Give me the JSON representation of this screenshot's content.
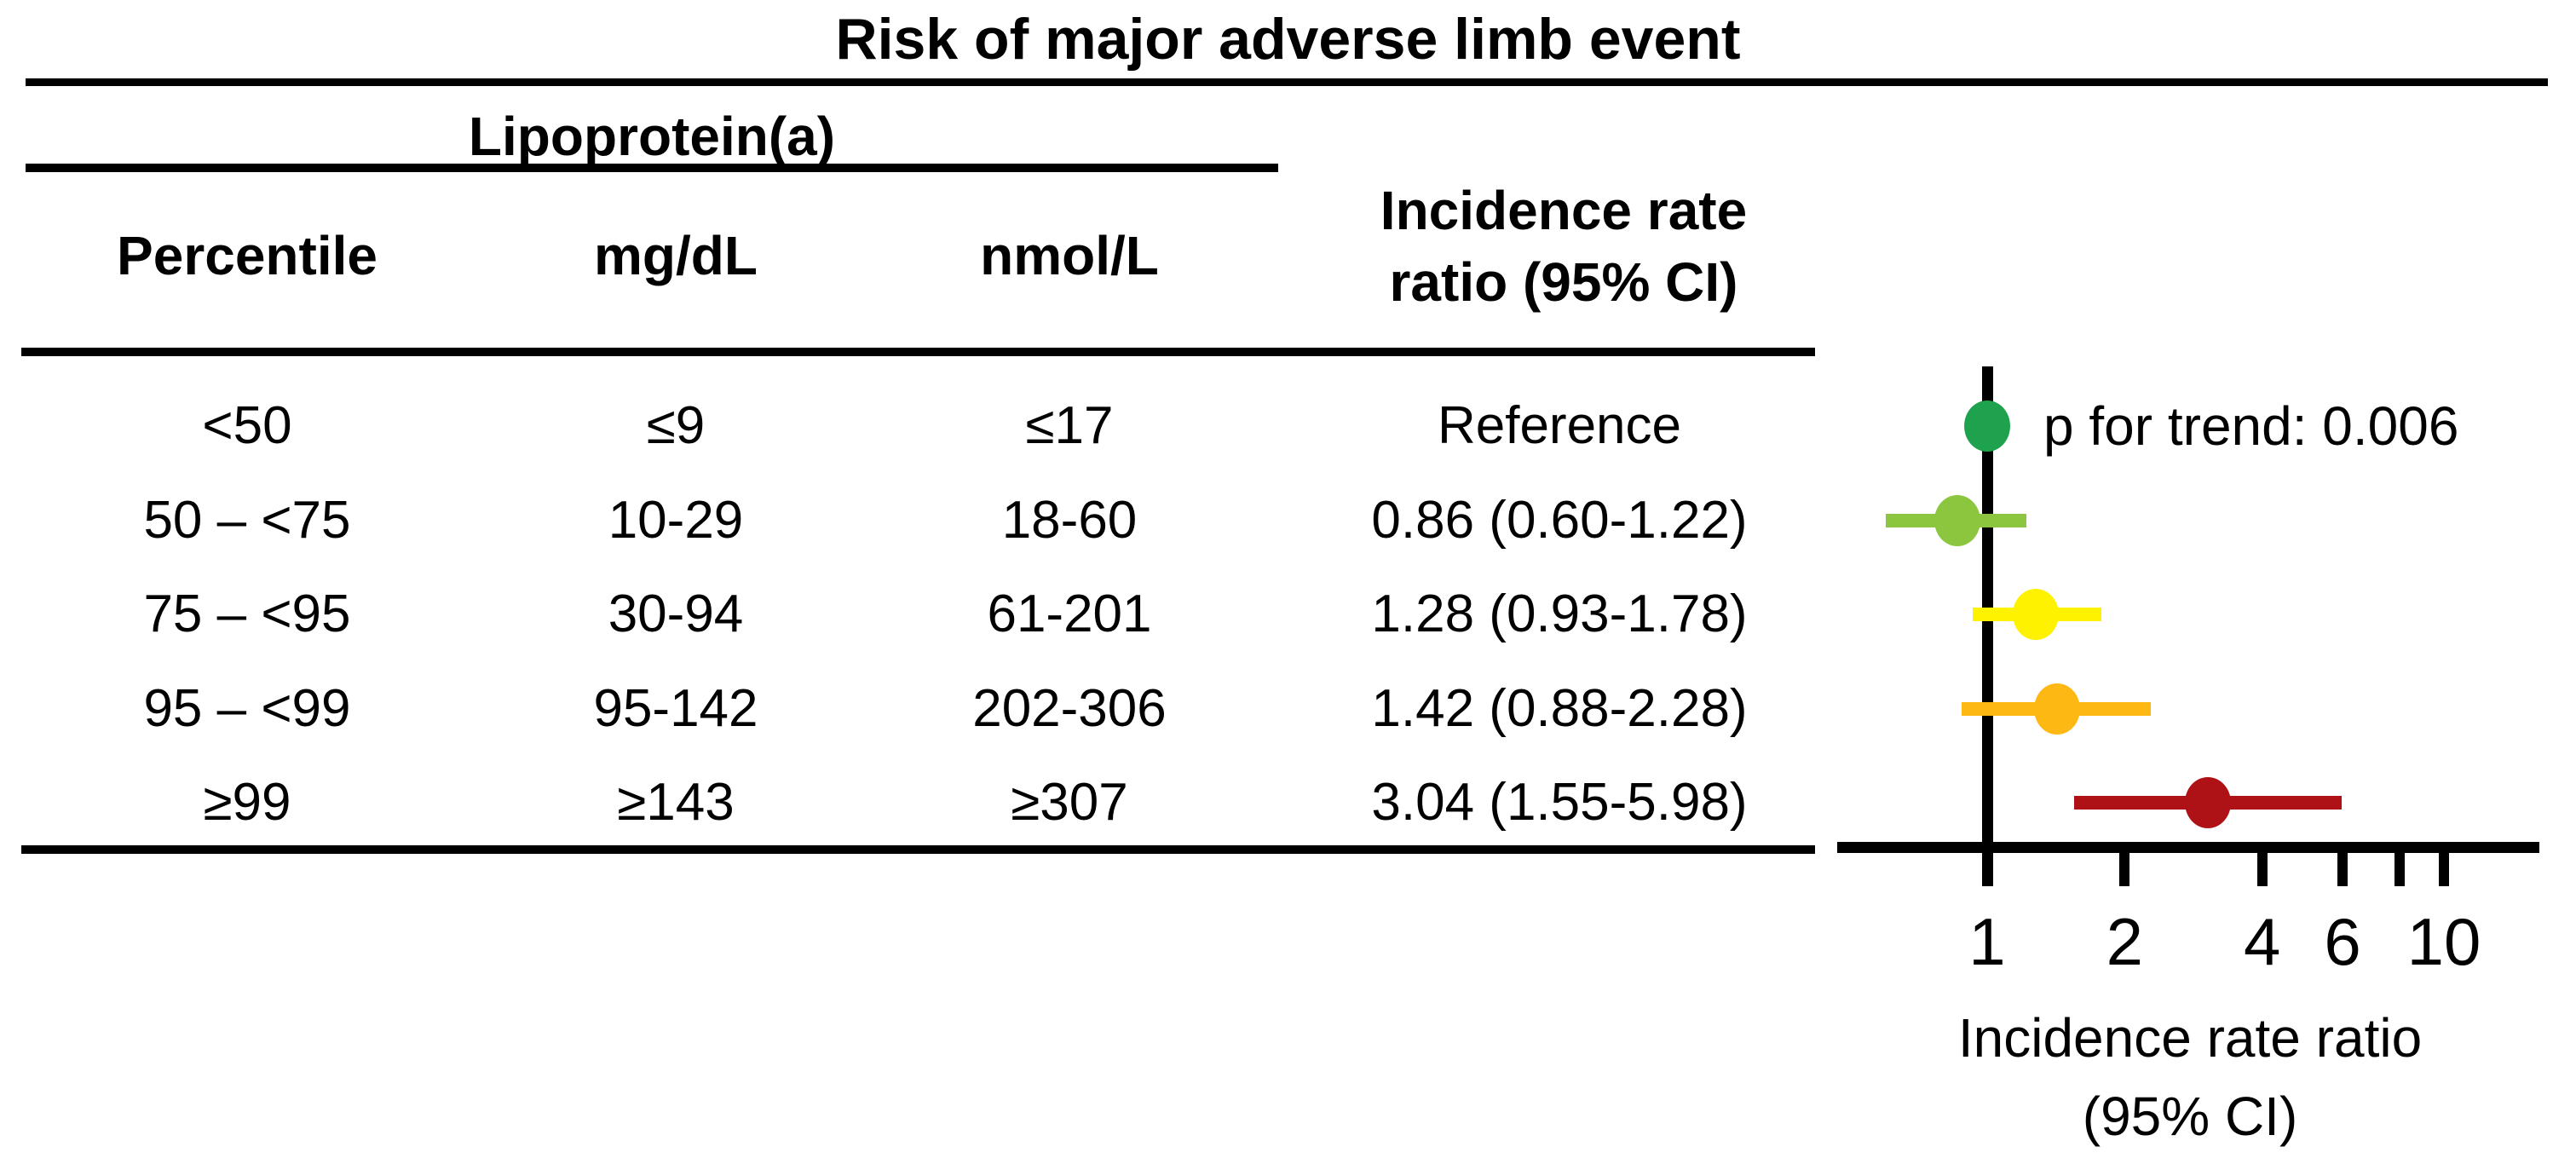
{
  "title": "Risk of major adverse limb event",
  "table": {
    "group_header": "Lipoprotein(a)",
    "columns": [
      "Percentile",
      "mg/dL",
      "nmol/L"
    ],
    "irr_header_line1": "Incidence rate",
    "irr_header_line2": "ratio (95% CI)",
    "rows": [
      {
        "percentile": "<50",
        "mg_dl": "≤9",
        "nmol_l": "≤17",
        "irr": "Reference"
      },
      {
        "percentile": "50 – <75",
        "mg_dl": "10-29",
        "nmol_l": "18-60",
        "irr": "0.86 (0.60-1.22)"
      },
      {
        "percentile": "75 – <95",
        "mg_dl": "30-94",
        "nmol_l": "61-201",
        "irr": "1.28 (0.93-1.78)"
      },
      {
        "percentile": "95 – <99",
        "mg_dl": "95-142",
        "nmol_l": "202-306",
        "irr": "1.42 (0.88-2.28)"
      },
      {
        "percentile": "≥99",
        "mg_dl": "≥143",
        "nmol_l": "≥307",
        "irr": "3.04 (1.55-5.98)"
      }
    ]
  },
  "annotation": {
    "p_for_trend": "p for trend: 0.006"
  },
  "chart_data": {
    "type": "forest",
    "x_scale": "log",
    "x_axis_label_line1": "Incidence rate ratio",
    "x_axis_label_line2": "(95% CI)",
    "x_ticks": [
      1,
      2,
      4,
      6,
      8,
      10
    ],
    "x_tick_labels": [
      {
        "value": 1,
        "label": "1"
      },
      {
        "value": 2,
        "label": "2"
      },
      {
        "value": 4,
        "label": "4"
      },
      {
        "value": 6,
        "label": "6"
      },
      {
        "value": 10,
        "label": "10"
      }
    ],
    "reference_line_value": 1,
    "points": [
      {
        "group": "<50",
        "irr": 1.0,
        "ci_low": null,
        "ci_high": null,
        "color": "#1FA24D",
        "is_reference": true
      },
      {
        "group": "50 – <75",
        "irr": 0.86,
        "ci_low": 0.6,
        "ci_high": 1.22,
        "color": "#8CC63F",
        "is_reference": false
      },
      {
        "group": "75 – <95",
        "irr": 1.28,
        "ci_low": 0.93,
        "ci_high": 1.78,
        "color": "#FEF200",
        "is_reference": false
      },
      {
        "group": "95 – <99",
        "irr": 1.42,
        "ci_low": 0.88,
        "ci_high": 2.28,
        "color": "#FDB813",
        "is_reference": false
      },
      {
        "group": "≥99",
        "irr": 3.04,
        "ci_low": 1.55,
        "ci_high": 5.98,
        "color": "#AE1116",
        "is_reference": false
      }
    ],
    "colors": {
      "axis": "#000000"
    }
  }
}
